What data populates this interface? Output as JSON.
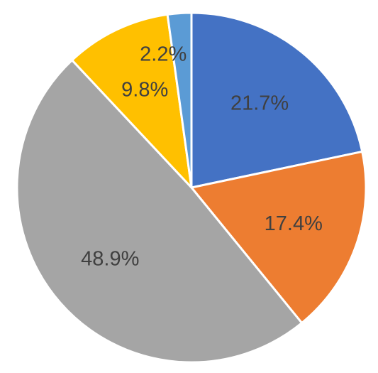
{
  "chart_data": {
    "type": "pie",
    "title": "",
    "start": "top",
    "direction": "clockwise",
    "legend": "none",
    "slices": [
      {
        "label": "21.7%",
        "value": 21.7,
        "color": "#4472C4"
      },
      {
        "label": "17.4%",
        "value": 17.4,
        "color": "#ED7D31"
      },
      {
        "label": "48.9%",
        "value": 48.9,
        "color": "#A5A5A5"
      },
      {
        "label": "9.8%",
        "value": 9.8,
        "color": "#FFC000"
      },
      {
        "label": "2.2%",
        "value": 2.2,
        "color": "#5B9BD5"
      }
    ]
  }
}
